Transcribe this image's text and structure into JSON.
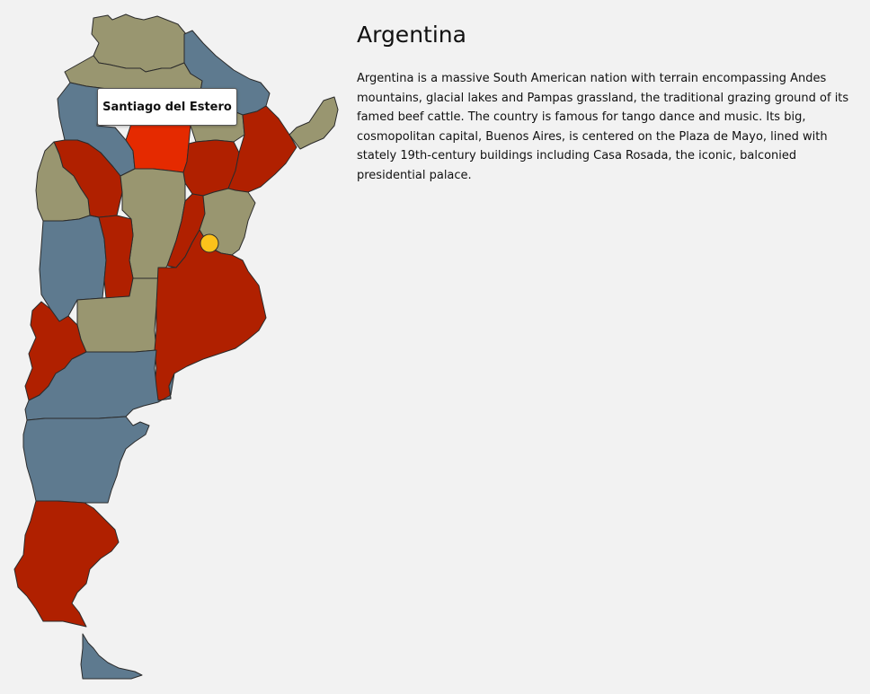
{
  "country": {
    "title": "Argentina",
    "description": "Argentina is a massive South American nation with terrain encompassing Andes mountains, glacial lakes and Pampas grassland, the traditional grazing ground of its famed beef cattle. The country is famous for tango dance and music. Its big, cosmopolitan capital, Buenos Aires, is centered on the Plaza de Mayo, lined with stately 19th-century buildings including Casa Rosada, the iconic, balconied presidential palace."
  },
  "tooltip": {
    "label": "Santiago del Estero"
  },
  "colors": {
    "olive": "#999670",
    "steel_blue": "#5e7a8f",
    "dark_red": "#b02000",
    "highlight_red": "#e52a00",
    "marker_yellow": "#fcc21b",
    "background": "#f2f2f2"
  },
  "marker": {
    "icon": "capital-marker-icon"
  }
}
